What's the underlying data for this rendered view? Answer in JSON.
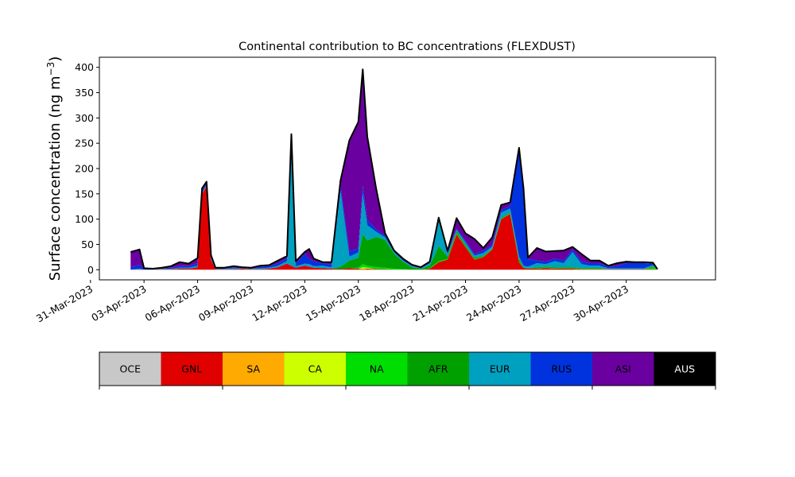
{
  "chart_data": {
    "type": "area",
    "stacked": true,
    "title": "Continental contribution to BC concentrations (FLEXDUST)",
    "ylabel_main": "Surface concentration (ng m",
    "ylabel_sup": "−3",
    "ylabel_close": ")",
    "xlabel": "",
    "ylim": [
      -20,
      420
    ],
    "yticks": [
      0,
      50,
      100,
      150,
      200,
      250,
      300,
      350,
      400
    ],
    "xlim": [
      "2023-03-31T12:00",
      "2023-05-05T00:00"
    ],
    "xticks": [
      "31-Mar-2023",
      "03-Apr-2023",
      "06-Apr-2023",
      "09-Apr-2023",
      "12-Apr-2023",
      "15-Apr-2023",
      "18-Apr-2023",
      "21-Apr-2023",
      "24-Apr-2023",
      "27-Apr-2023",
      "30-Apr-2023"
    ],
    "x": [
      "02-Apr 06",
      "02-Apr 18",
      "03-Apr 00",
      "03-Apr 12",
      "04-Apr 00",
      "04-Apr 12",
      "05-Apr 00",
      "05-Apr 12",
      "06-Apr 00",
      "06-Apr 06",
      "06-Apr 12",
      "06-Apr 18",
      "07-Apr 00",
      "07-Apr 12",
      "08-Apr 00",
      "08-Apr 12",
      "09-Apr 00",
      "09-Apr 12",
      "10-Apr 00",
      "10-Apr 12",
      "11-Apr 00",
      "11-Apr 06",
      "11-Apr 12",
      "12-Apr 00",
      "12-Apr 06",
      "12-Apr 12",
      "13-Apr 00",
      "13-Apr 12",
      "14-Apr 00",
      "14-Apr 12",
      "15-Apr 00",
      "15-Apr 06",
      "15-Apr 12",
      "16-Apr 00",
      "16-Apr 12",
      "17-Apr 00",
      "17-Apr 12",
      "18-Apr 00",
      "18-Apr 12",
      "19-Apr 00",
      "19-Apr 12",
      "20-Apr 00",
      "20-Apr 12",
      "21-Apr 00",
      "21-Apr 12",
      "22-Apr 00",
      "22-Apr 12",
      "23-Apr 00",
      "23-Apr 12",
      "24-Apr 00",
      "24-Apr 06",
      "24-Apr 12",
      "25-Apr 00",
      "25-Apr 12",
      "26-Apr 00",
      "26-Apr 12",
      "27-Apr 00",
      "27-Apr 12",
      "28-Apr 00",
      "28-Apr 12",
      "29-Apr 00",
      "29-Apr 12",
      "30-Apr 00",
      "30-Apr 12",
      "01-May 00",
      "01-May 12",
      "01-May 18"
    ],
    "series": [
      {
        "name": "OCE",
        "color": "#c8c8c8",
        "values": [
          0,
          0,
          0,
          0,
          0,
          0,
          0,
          0,
          0,
          0,
          0,
          0,
          0,
          0,
          0,
          0,
          0,
          0,
          0,
          0,
          0,
          0,
          0,
          0,
          0,
          0,
          0,
          0,
          0,
          0,
          0,
          0,
          0,
          0,
          0,
          0,
          0,
          0,
          0,
          0,
          0,
          0,
          0,
          0,
          0,
          0,
          0,
          0,
          0,
          0,
          0,
          0,
          0,
          0,
          0,
          0,
          0,
          0,
          0,
          0,
          0,
          0,
          0,
          0,
          0,
          0,
          0
        ]
      },
      {
        "name": "GNL",
        "color": "#e00000",
        "values": [
          0,
          1,
          0,
          0,
          1,
          1,
          2,
          2,
          5,
          150,
          165,
          20,
          1,
          1,
          1,
          2,
          1,
          1,
          2,
          5,
          12,
          8,
          4,
          8,
          6,
          4,
          3,
          2,
          1,
          3,
          2,
          1,
          2,
          1,
          1,
          0,
          0,
          0,
          0,
          2,
          15,
          20,
          70,
          45,
          20,
          25,
          40,
          100,
          110,
          15,
          3,
          2,
          2,
          3,
          2,
          2,
          2,
          1,
          1,
          1,
          1,
          1,
          1,
          1,
          1,
          1,
          0
        ]
      },
      {
        "name": "SA",
        "color": "#ffaa00",
        "values": [
          0,
          0,
          0,
          0,
          0,
          0,
          0,
          0,
          0,
          0,
          0,
          0,
          0,
          0,
          0,
          0,
          0,
          0,
          0,
          0,
          0,
          0,
          0,
          0,
          0,
          0,
          0,
          0,
          0,
          0,
          0,
          0,
          0,
          0,
          0,
          0,
          0,
          0,
          0,
          0,
          0,
          0,
          0,
          0,
          0,
          0,
          0,
          0,
          0,
          0,
          0,
          0,
          0,
          0,
          0,
          0,
          0,
          0,
          0,
          0,
          0,
          0,
          0,
          0,
          0,
          0,
          0
        ]
      },
      {
        "name": "CA",
        "color": "#ccff00",
        "values": [
          0,
          0,
          0,
          0,
          0,
          0,
          0,
          0,
          0,
          0,
          0,
          0,
          0,
          0,
          0,
          0,
          0,
          0,
          0,
          0,
          0,
          0,
          0,
          0,
          0,
          0,
          0,
          0,
          0,
          0,
          0,
          4,
          2,
          0,
          0,
          0,
          0,
          0,
          0,
          0,
          0,
          0,
          0,
          0,
          0,
          0,
          0,
          0,
          0,
          0,
          0,
          0,
          0,
          0,
          0,
          0,
          0,
          0,
          0,
          0,
          0,
          0,
          0,
          0,
          0,
          0,
          0
        ]
      },
      {
        "name": "NA",
        "color": "#00dd00",
        "values": [
          0,
          0,
          0,
          0,
          0,
          0,
          0,
          0,
          0,
          0,
          0,
          0,
          0,
          0,
          0,
          0,
          0,
          0,
          0,
          0,
          0,
          0,
          0,
          0,
          0,
          0,
          0,
          0,
          0,
          0,
          2,
          6,
          4,
          4,
          3,
          2,
          1,
          0,
          0,
          1,
          2,
          1,
          2,
          1,
          1,
          1,
          1,
          1,
          1,
          1,
          0,
          0,
          1,
          1,
          1,
          1,
          1,
          1,
          1,
          1,
          0,
          0,
          0,
          0,
          0,
          4,
          0
        ]
      },
      {
        "name": "AFR",
        "color": "#00a000",
        "values": [
          0,
          0,
          0,
          0,
          0,
          0,
          0,
          0,
          0,
          0,
          0,
          0,
          0,
          0,
          0,
          0,
          0,
          0,
          0,
          0,
          0,
          0,
          0,
          0,
          0,
          0,
          0,
          0,
          5,
          15,
          20,
          60,
          50,
          60,
          55,
          30,
          15,
          5,
          2,
          5,
          30,
          5,
          4,
          3,
          3,
          2,
          1,
          2,
          2,
          5,
          2,
          1,
          2,
          2,
          2,
          2,
          2,
          1,
          1,
          1,
          0,
          0,
          0,
          0,
          0,
          2,
          0
        ]
      },
      {
        "name": "EUR",
        "color": "#00a0c0",
        "values": [
          0,
          1,
          0,
          0,
          1,
          1,
          2,
          2,
          3,
          3,
          2,
          2,
          1,
          1,
          2,
          1,
          1,
          2,
          2,
          3,
          5,
          245,
          3,
          4,
          5,
          3,
          5,
          3,
          150,
          8,
          10,
          80,
          30,
          10,
          5,
          3,
          2,
          2,
          1,
          5,
          50,
          5,
          3,
          5,
          4,
          5,
          4,
          10,
          8,
          5,
          3,
          3,
          8,
          5,
          12,
          8,
          30,
          8,
          5,
          5,
          2,
          2,
          2,
          2,
          2,
          2,
          1
        ]
      },
      {
        "name": "RUS",
        "color": "#0033dd",
        "values": [
          5,
          8,
          2,
          1,
          1,
          2,
          3,
          3,
          5,
          3,
          2,
          2,
          1,
          1,
          2,
          1,
          1,
          3,
          3,
          5,
          5,
          10,
          5,
          20,
          10,
          10,
          5,
          5,
          10,
          10,
          8,
          15,
          10,
          5,
          3,
          2,
          2,
          1,
          1,
          1,
          3,
          3,
          3,
          3,
          3,
          5,
          3,
          5,
          5,
          210,
          150,
          15,
          5,
          5,
          5,
          5,
          5,
          5,
          5,
          5,
          3,
          5,
          10,
          10,
          10,
          3,
          0
        ]
      },
      {
        "name": "ASI",
        "color": "#6a00a0",
        "values": [
          30,
          30,
          1,
          1,
          1,
          3,
          8,
          5,
          10,
          5,
          5,
          5,
          1,
          1,
          2,
          1,
          1,
          2,
          2,
          5,
          5,
          5,
          5,
          3,
          20,
          5,
          2,
          5,
          10,
          220,
          250,
          230,
          165,
          80,
          5,
          1,
          2,
          2,
          1,
          2,
          3,
          3,
          20,
          15,
          30,
          5,
          15,
          10,
          7,
          5,
          3,
          3,
          25,
          20,
          15,
          20,
          5,
          15,
          5,
          5,
          2,
          5,
          3,
          2,
          2,
          2,
          0
        ]
      },
      {
        "name": "AUS",
        "color": "#000000",
        "values": [
          0,
          0,
          0,
          0,
          0,
          0,
          0,
          0,
          0,
          0,
          0,
          0,
          0,
          0,
          0,
          0,
          0,
          0,
          0,
          0,
          0,
          0,
          0,
          0,
          0,
          0,
          0,
          0,
          0,
          0,
          0,
          0,
          0,
          0,
          0,
          0,
          0,
          0,
          0,
          0,
          0,
          0,
          0,
          0,
          0,
          0,
          0,
          0,
          0,
          0,
          0,
          0,
          0,
          0,
          0,
          0,
          0,
          0,
          0,
          0,
          0,
          0,
          0,
          0,
          0,
          0,
          0
        ]
      }
    ],
    "legend": [
      "OCE",
      "GNL",
      "SA",
      "CA",
      "NA",
      "AFR",
      "EUR",
      "RUS",
      "ASI",
      "AUS"
    ],
    "legend_placement": "bottom",
    "grid": false
  }
}
